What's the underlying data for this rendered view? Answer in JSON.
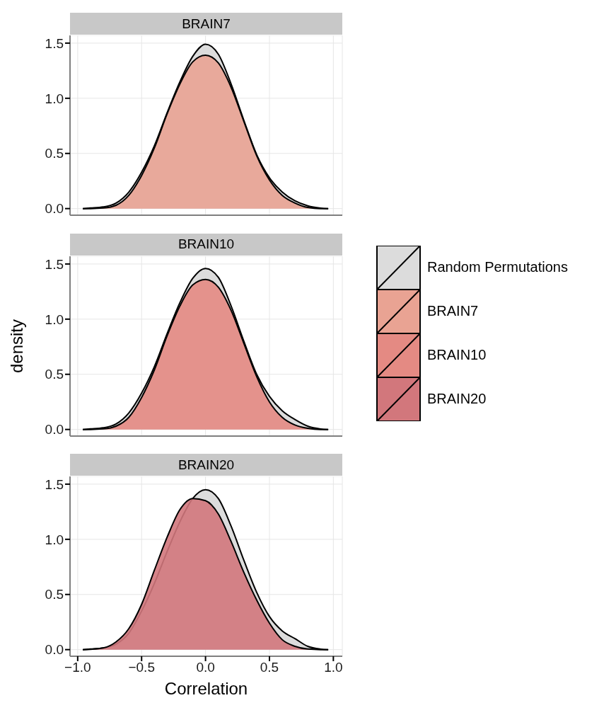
{
  "chart_data": [
    {
      "type": "area",
      "title": "BRAIN7",
      "legend": "right",
      "x": [
        -0.96,
        -0.9,
        -0.8,
        -0.7,
        -0.6,
        -0.5,
        -0.4,
        -0.3,
        -0.2,
        -0.1,
        0,
        0.1,
        0.2,
        0.3,
        0.4,
        0.5,
        0.6,
        0.7,
        0.8,
        0.9,
        0.96
      ],
      "xlim": [
        -1.06,
        1.07
      ],
      "ylim": [
        -0.06,
        1.57
      ],
      "xticks": [
        {
          "value": -1,
          "label": null
        },
        {
          "value": -0.5,
          "label": null
        },
        {
          "value": 0,
          "label": null
        },
        {
          "value": 0.5,
          "label": null
        },
        {
          "value": 1,
          "label": null
        }
      ],
      "yticks": [
        {
          "value": 0,
          "label": "0.0"
        },
        {
          "value": 0.5,
          "label": "0.5"
        },
        {
          "value": 1,
          "label": "1.0"
        },
        {
          "value": 1.5,
          "label": "1.5"
        }
      ],
      "grid": true,
      "tick_labels": "y",
      "series": [
        {
          "name": "Random Permutations",
          "color": "#dcdcdc",
          "values": [
            0,
            0.005,
            0.015,
            0.05,
            0.15,
            0.33,
            0.57,
            0.87,
            1.15,
            1.38,
            1.49,
            1.4,
            1.13,
            0.8,
            0.49,
            0.28,
            0.15,
            0.07,
            0.025,
            0.005,
            0
          ]
        },
        {
          "name": "BRAIN7",
          "color": "#e9a393",
          "values": [
            0,
            0,
            0.005,
            0.03,
            0.12,
            0.3,
            0.55,
            0.86,
            1.13,
            1.33,
            1.39,
            1.32,
            1.1,
            0.79,
            0.48,
            0.26,
            0.12,
            0.05,
            0.01,
            0,
            0
          ]
        }
      ]
    },
    {
      "type": "area",
      "title": "BRAIN10",
      "ylabel": "density",
      "legend": "right",
      "x": [
        -0.96,
        -0.9,
        -0.8,
        -0.7,
        -0.6,
        -0.5,
        -0.4,
        -0.3,
        -0.2,
        -0.1,
        0,
        0.1,
        0.2,
        0.3,
        0.4,
        0.5,
        0.6,
        0.7,
        0.8,
        0.9,
        0.96
      ],
      "xlim": [
        -1.06,
        1.07
      ],
      "ylim": [
        -0.06,
        1.57
      ],
      "xticks": [
        {
          "value": -1,
          "label": null
        },
        {
          "value": -0.5,
          "label": null
        },
        {
          "value": 0,
          "label": null
        },
        {
          "value": 0.5,
          "label": null
        },
        {
          "value": 1,
          "label": null
        }
      ],
      "yticks": [
        {
          "value": 0,
          "label": "0.0"
        },
        {
          "value": 0.5,
          "label": "0.5"
        },
        {
          "value": 1,
          "label": "1.0"
        },
        {
          "value": 1.5,
          "label": "1.5"
        }
      ],
      "grid": true,
      "tick_labels": "y",
      "series": [
        {
          "color": "#dcdcdc",
          "values": [
            0,
            0.005,
            0.015,
            0.05,
            0.15,
            0.33,
            0.57,
            0.87,
            1.15,
            1.37,
            1.46,
            1.38,
            1.12,
            0.8,
            0.5,
            0.3,
            0.17,
            0.09,
            0.03,
            0.005,
            0
          ]
        },
        {
          "name": "BRAIN10",
          "color": "#e48a83",
          "values": [
            0,
            0,
            0.005,
            0.03,
            0.11,
            0.29,
            0.54,
            0.85,
            1.12,
            1.31,
            1.36,
            1.29,
            1.08,
            0.78,
            0.48,
            0.25,
            0.11,
            0.04,
            0.01,
            0,
            0
          ]
        }
      ]
    },
    {
      "type": "area",
      "title": "BRAIN20",
      "xlabel": "Correlation",
      "legend": "right",
      "x": [
        -0.96,
        -0.9,
        -0.8,
        -0.7,
        -0.6,
        -0.5,
        -0.4,
        -0.3,
        -0.2,
        -0.1,
        0,
        0.1,
        0.2,
        0.3,
        0.4,
        0.5,
        0.6,
        0.7,
        0.8,
        0.9,
        0.96
      ],
      "xlim": [
        -1.06,
        1.07
      ],
      "ylim": [
        -0.06,
        1.57
      ],
      "xticks": [
        {
          "value": -1,
          "label": "−1.0"
        },
        {
          "value": -0.5,
          "label": "−0.5"
        },
        {
          "value": 0,
          "label": "0.0"
        },
        {
          "value": 0.5,
          "label": "0.5"
        },
        {
          "value": 1,
          "label": "1.0"
        }
      ],
      "yticks": [
        {
          "value": 0,
          "label": "0.0"
        },
        {
          "value": 0.5,
          "label": "0.5"
        },
        {
          "value": 1,
          "label": "1.0"
        },
        {
          "value": 1.5,
          "label": "1.5"
        }
      ],
      "grid": true,
      "series": [
        {
          "color": "#dcdcdc",
          "values": [
            0,
            0.005,
            0.015,
            0.05,
            0.15,
            0.35,
            0.6,
            0.89,
            1.16,
            1.37,
            1.45,
            1.37,
            1.12,
            0.81,
            0.52,
            0.3,
            0.17,
            0.1,
            0.03,
            0.005,
            0
          ]
        },
        {
          "name": "BRAIN20",
          "color": "#d2777c",
          "values": [
            0,
            0.003,
            0.015,
            0.07,
            0.19,
            0.41,
            0.72,
            1.02,
            1.27,
            1.37,
            1.35,
            1.23,
            0.98,
            0.7,
            0.45,
            0.24,
            0.09,
            0.03,
            0.005,
            0,
            0
          ]
        }
      ]
    }
  ]
}
